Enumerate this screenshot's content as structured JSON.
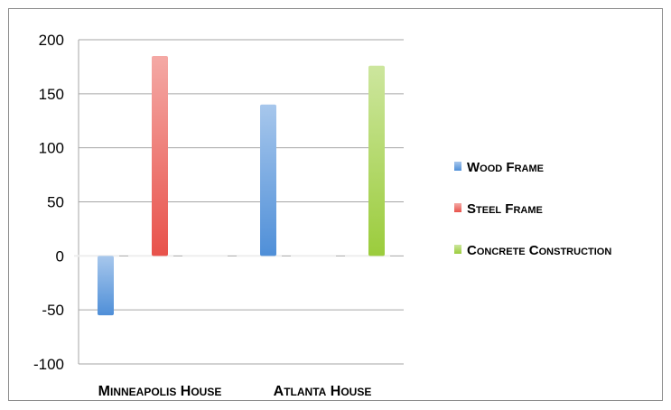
{
  "chart_data": {
    "type": "bar",
    "title": "",
    "xlabel": "",
    "ylabel": "",
    "categories": [
      "Minneapolis House",
      "Atlanta House"
    ],
    "ylim": [
      -100,
      200
    ],
    "yticks": [
      200,
      150,
      100,
      50,
      0,
      -50,
      -100
    ],
    "grid": true,
    "legend_position": "right",
    "series": [
      {
        "name": "Wood Frame",
        "color": "#4f8fd8",
        "values": [
          -55,
          140
        ]
      },
      {
        "name": "Steel Frame",
        "color": "#e8524b",
        "values": [
          185,
          null
        ]
      },
      {
        "name": "Concrete Construction",
        "color": "#9bcc3c",
        "values": [
          null,
          176
        ]
      }
    ]
  }
}
